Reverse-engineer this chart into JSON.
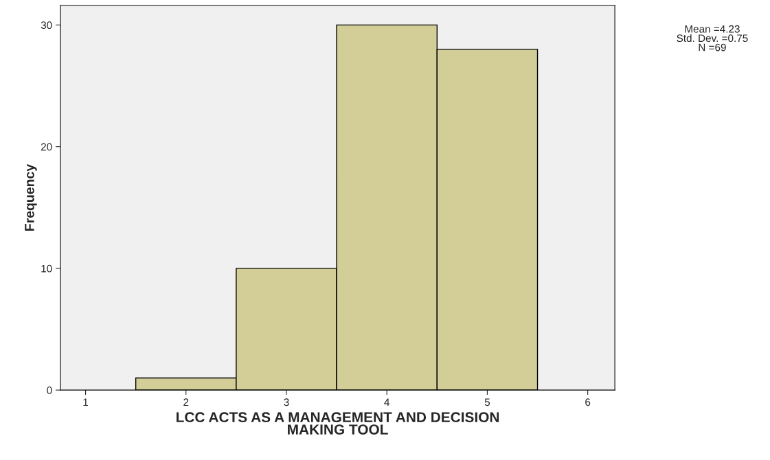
{
  "chart_data": {
    "type": "histogram",
    "xlabel": "LCC ACTS AS A MANAGEMENT AND DECISION\nMAKING TOOL",
    "ylabel": "Frequency",
    "bins": [
      1.5,
      2.5,
      3.5,
      4.5,
      5.5
    ],
    "values": [
      1,
      10,
      30,
      28
    ],
    "color": "#d3ce97",
    "xlim": [
      0.75,
      6.27
    ],
    "xticks": [
      1,
      2,
      3,
      4,
      5,
      6
    ],
    "ylim": [
      0,
      31.6
    ],
    "yticks": [
      0,
      10,
      20,
      30
    ],
    "grid": false,
    "annotations": [
      "Mean =4.23",
      "Std. Dev. =0.75",
      "N =69"
    ]
  }
}
